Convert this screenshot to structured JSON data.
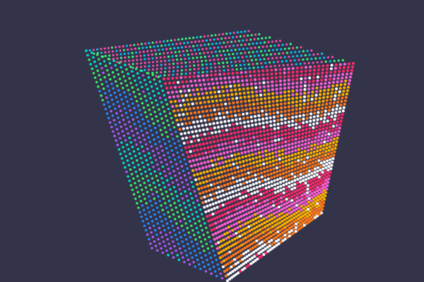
{
  "scene": {
    "background": "#33344a",
    "palette": {
      "left_face": [
        "#00e5d0",
        "#3cf06a",
        "#2a8cff",
        "#b05cff"
      ],
      "front_face": [
        "#ff2a6a",
        "#ff5fd2",
        "#ffb000",
        "#ff7a1a",
        "#ffffff"
      ],
      "top_face": [
        "#00c8ff",
        "#3cff80",
        "#ff4fb0"
      ]
    }
  }
}
